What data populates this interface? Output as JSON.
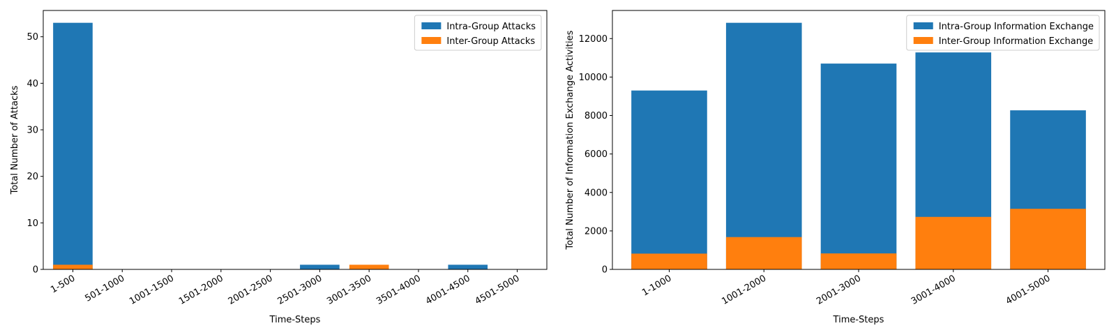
{
  "chart_data": [
    {
      "type": "bar",
      "stacked": false,
      "xlabel": "Time-Steps",
      "ylabel": "Total Number of Attacks",
      "categories": [
        "1-500",
        "501-1000",
        "1001-1500",
        "1501-2000",
        "2001-2500",
        "2501-3000",
        "3001-3500",
        "3501-4000",
        "4001-4500",
        "4501-5000"
      ],
      "series": [
        {
          "name": "Intra-Group Attacks",
          "color": "#1f77b4",
          "values": [
            53,
            0,
            0,
            0,
            0,
            1,
            0,
            0,
            1,
            0
          ]
        },
        {
          "name": "Inter-Group Attacks",
          "color": "#ff7f0e",
          "values": [
            1,
            0,
            0,
            0,
            0,
            0,
            1,
            0,
            0,
            0
          ]
        }
      ],
      "ylim": [
        0,
        55.65
      ],
      "yticks": [
        0,
        10,
        20,
        30,
        40,
        50
      ],
      "ytick_labels": [
        "0",
        "10",
        "20",
        "30",
        "40",
        "50"
      ],
      "xtick_rotation": 30,
      "legend": "top-right",
      "grid": false
    },
    {
      "type": "bar",
      "stacked": false,
      "xlabel": "Time-Steps",
      "ylabel": "Total Number of Information Exchange Activities",
      "categories": [
        "1-1000",
        "1001-2000",
        "2001-3000",
        "3001-4000",
        "4001-5000"
      ],
      "series": [
        {
          "name": "Intra-Group Information Exchange",
          "color": "#1f77b4",
          "values": [
            9300,
            12820,
            10700,
            11280,
            8270
          ]
        },
        {
          "name": "Inter-Group Information Exchange",
          "color": "#ff7f0e",
          "values": [
            820,
            1680,
            830,
            2730,
            3150
          ]
        }
      ],
      "ylim": [
        0,
        13461
      ],
      "yticks": [
        0,
        2000,
        4000,
        6000,
        8000,
        10000,
        12000
      ],
      "ytick_labels": [
        "0",
        "2000",
        "4000",
        "6000",
        "8000",
        "10000",
        "12000"
      ],
      "xtick_rotation": 30,
      "legend": "top-right",
      "grid": false
    }
  ]
}
